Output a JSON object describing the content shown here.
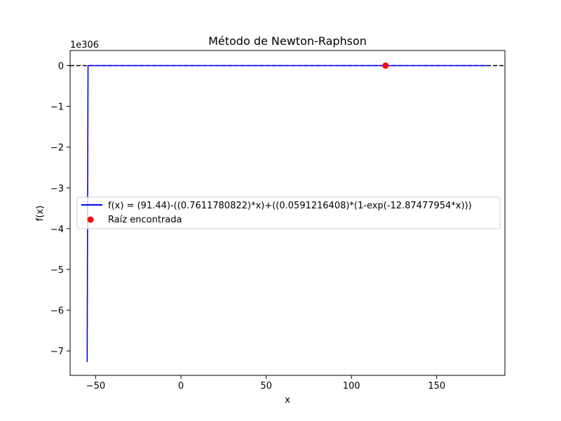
{
  "chart_data": {
    "type": "line",
    "title": "Método de Newton-Raphson",
    "xlabel": "x",
    "ylabel": "f(x)",
    "y_multiplier_label": "1e306",
    "xlim": [
      -65,
      190
    ],
    "ylim": [
      -7.6,
      0.37
    ],
    "xticks": [
      -50,
      0,
      50,
      100,
      150
    ],
    "xtick_labels": [
      "−50",
      "0",
      "50",
      "100",
      "150"
    ],
    "yticks": [
      0,
      -1,
      -2,
      -3,
      -4,
      -5,
      -6,
      -7
    ],
    "ytick_labels": [
      "0",
      "−1",
      "−2",
      "−3",
      "−4",
      "−5",
      "−6",
      "−7"
    ],
    "grid": false,
    "legend_position": "center-left",
    "series": [
      {
        "name": "f(x) = (91.44)-((0.7611780822)*x)+((0.0591216408)*(1-exp(-12.87477954*x)))",
        "kind": "line",
        "color": "#0000ff",
        "x": [
          -55,
          -54.5,
          -54,
          180
        ],
        "y": [
          -7.27,
          -0.003,
          0,
          0
        ]
      },
      {
        "name": "Raíz encontrada",
        "kind": "scatter",
        "color": "#ff0000",
        "x": [
          120
        ],
        "y": [
          0
        ]
      }
    ],
    "reference_line": {
      "y": 0,
      "style": "dashed",
      "color": "#000000"
    }
  }
}
